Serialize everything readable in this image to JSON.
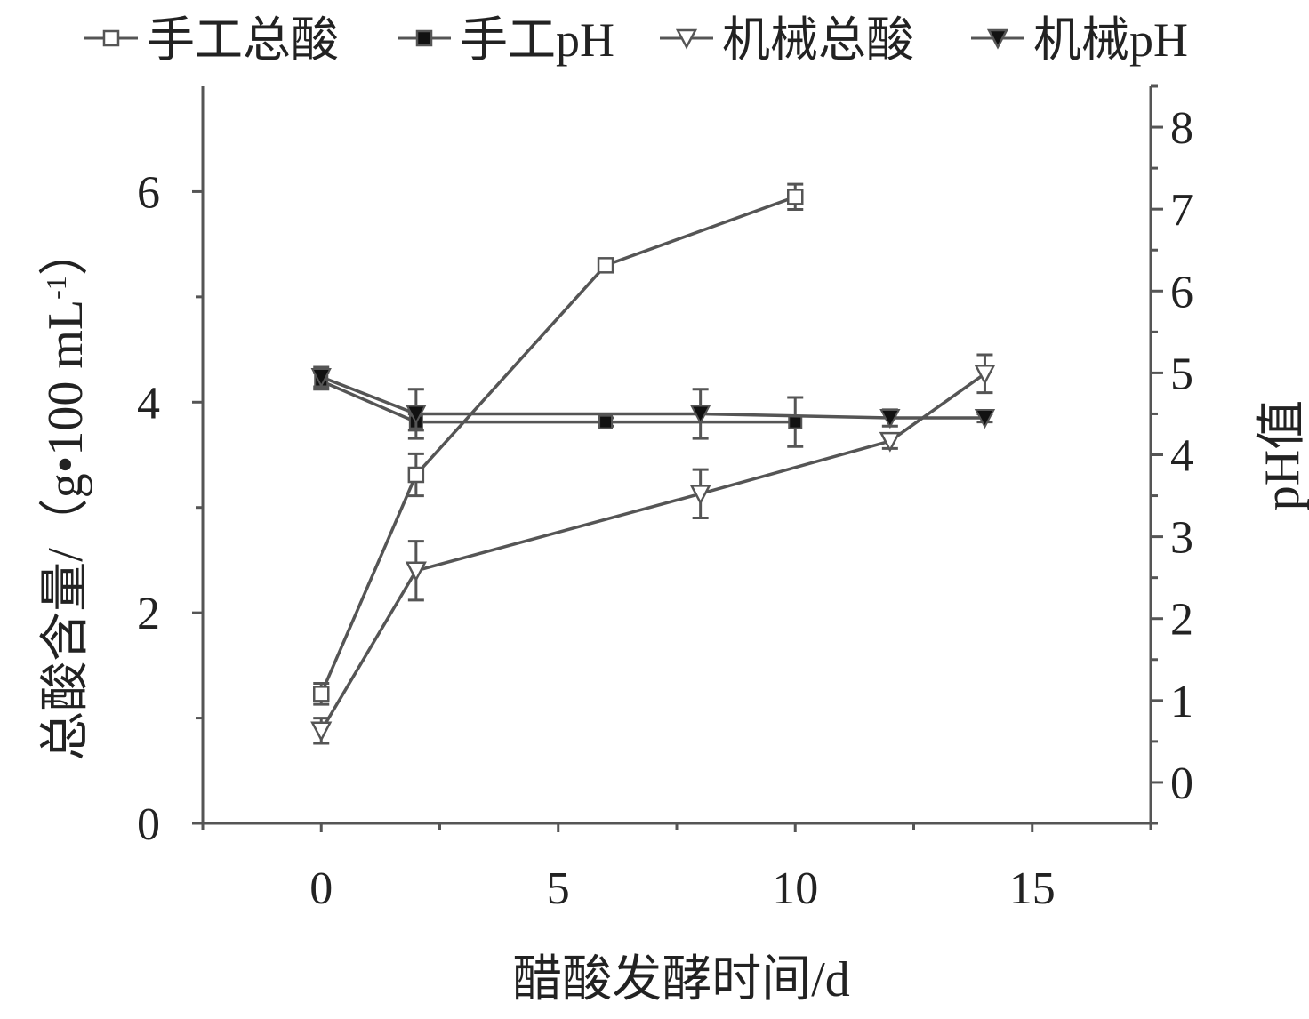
{
  "chart_data": {
    "type": "line",
    "xlabel": "醋酸发酵时间/d",
    "ylabel_left": "总酸含量/（g•100 mL",
    "ylabel_left_sup": "-1",
    "ylabel_left_close": "）",
    "ylabel_right": "pH值",
    "xlim": [
      -2.5,
      17.5
    ],
    "ylim_left": [
      0,
      7
    ],
    "ylim_right": [
      -0.5,
      8.5
    ],
    "x_ticks": [
      0,
      5,
      10,
      15
    ],
    "y_left_ticks": [
      0,
      2,
      4,
      6
    ],
    "y_right_ticks": [
      0,
      1,
      2,
      3,
      4,
      5,
      6,
      7,
      8
    ],
    "x_tick_labels": [
      "0",
      "5",
      "10",
      "15"
    ],
    "y_left_tick_labels": [
      "0",
      "2",
      "4",
      "6"
    ],
    "y_right_tick_labels": [
      "0",
      "1",
      "2",
      "3",
      "4",
      "5",
      "6",
      "7",
      "8"
    ],
    "grid": false,
    "legend_position": "top",
    "series": [
      {
        "name": "手工总酸",
        "axis": "left",
        "marker": "square-open",
        "color": "#555555",
        "x": [
          0,
          2,
          6,
          10
        ],
        "y": [
          1.23,
          3.31,
          5.3,
          5.95
        ],
        "err": [
          0.1,
          0.2,
          0.03,
          0.12
        ]
      },
      {
        "name": "手工pH",
        "axis": "right",
        "marker": "square-filled",
        "color": "#555555",
        "x": [
          0,
          2,
          6,
          10
        ],
        "y": [
          4.9,
          4.4,
          4.4,
          4.4
        ],
        "err": [
          0.1,
          0.1,
          0.05,
          0.3
        ]
      },
      {
        "name": "机械总酸",
        "axis": "left",
        "marker": "triangle-down-open",
        "color": "#555555",
        "x": [
          0,
          2,
          8,
          12,
          14
        ],
        "y": [
          0.88,
          2.4,
          3.13,
          3.63,
          4.27
        ],
        "err": [
          0.12,
          0.28,
          0.23,
          0.07,
          0.18
        ]
      },
      {
        "name": "机械pH",
        "axis": "right",
        "marker": "triangle-down-filled",
        "color": "#555555",
        "x": [
          0,
          2,
          8,
          12,
          14
        ],
        "y": [
          4.95,
          4.5,
          4.5,
          4.45,
          4.45
        ],
        "err": [
          0.12,
          0.3,
          0.3,
          0.1,
          0.05
        ]
      }
    ]
  }
}
